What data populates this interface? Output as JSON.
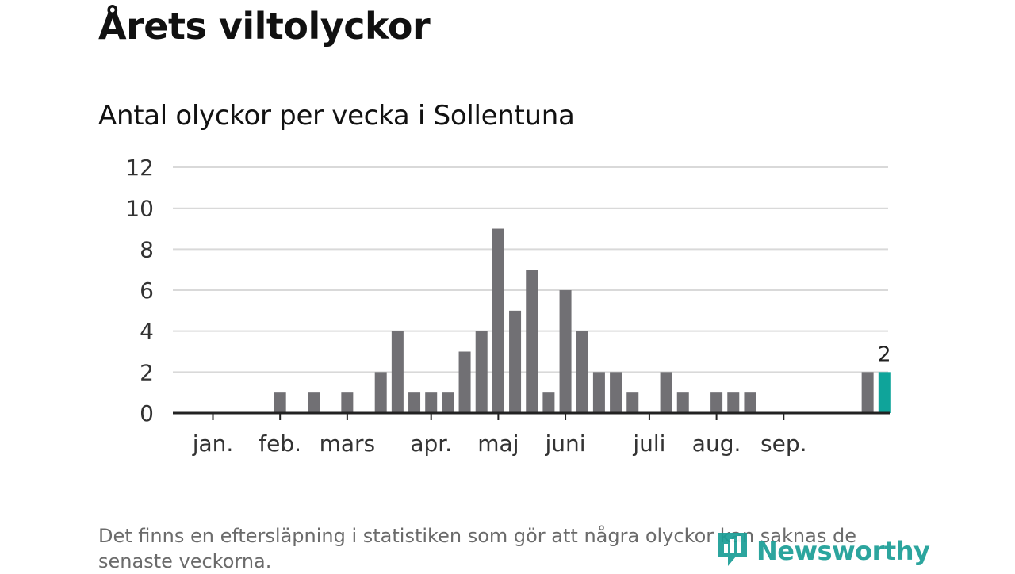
{
  "title": "Årets viltolyckor",
  "subtitle": "Antal olyckor per vecka i Sollentuna",
  "footnote": "Det finns en eftersläpning i statistiken som gör att några olyckor kan saknas de senaste veckorna.",
  "brand": {
    "name": "Newsworthy",
    "icon": "newsworthy-logo-icon",
    "color": "#1b9e96"
  },
  "colors": {
    "bar": "#717074",
    "highlight": "#0fa49a",
    "grid": "#d9d9d9",
    "axis": "#222222"
  },
  "chart_data": {
    "type": "bar",
    "title": "",
    "xlabel": "",
    "ylabel": "",
    "ylim": [
      0,
      12
    ],
    "yticks": [
      0,
      2,
      4,
      6,
      8,
      10,
      12
    ],
    "grid": true,
    "month_labels": [
      "jan.",
      "feb.",
      "mars",
      "apr.",
      "maj",
      "juni",
      "juli",
      "aug.",
      "sep."
    ],
    "month_start_weeks": [
      1,
      5,
      9,
      14,
      18,
      22,
      27,
      31,
      35
    ],
    "weeks": [
      1,
      2,
      3,
      4,
      5,
      6,
      7,
      8,
      9,
      10,
      11,
      12,
      13,
      14,
      15,
      16,
      17,
      18,
      19,
      20,
      21,
      22,
      23,
      24,
      25,
      26,
      27,
      28,
      29,
      30,
      31,
      32,
      33,
      34,
      35,
      36,
      37,
      38,
      39,
      40,
      41
    ],
    "values": [
      0,
      0,
      0,
      0,
      1,
      0,
      1,
      0,
      1,
      0,
      2,
      4,
      1,
      1,
      1,
      3,
      4,
      9,
      5,
      7,
      1,
      6,
      4,
      2,
      2,
      1,
      0,
      2,
      1,
      0,
      1,
      1,
      1,
      0,
      0,
      0,
      0,
      0,
      0,
      2,
      2
    ],
    "highlight_index": 40,
    "highlight_label": "2"
  }
}
